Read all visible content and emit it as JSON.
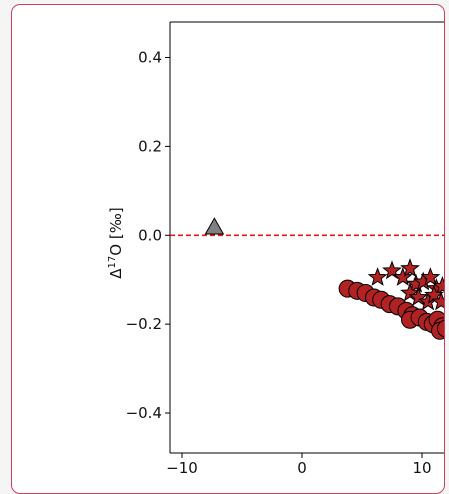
{
  "chart_data": {
    "type": "scatter",
    "title": "",
    "xlabel": "",
    "ylabel_main": "Δ",
    "ylabel_sup": "17",
    "ylabel_rest": "O [‰]",
    "xlim": [
      -11,
      12
    ],
    "ylim": [
      -0.49,
      0.48
    ],
    "xticks": [
      -10,
      0,
      10
    ],
    "xtick_labels": [
      "−10",
      "0",
      "10"
    ],
    "yticks": [
      0.4,
      0.2,
      0.0,
      -0.2,
      -0.4
    ],
    "ytick_labels": [
      "0.4",
      "0.2",
      "0.0",
      "−0.2",
      "−0.4"
    ],
    "grid": false,
    "reference_line": {
      "y": 0.0,
      "color": "#e8161b",
      "style": "dashed"
    },
    "series": [
      {
        "marker": "triangle",
        "color": "#808080",
        "points": [
          [
            -7.3,
            0.018
          ]
        ]
      },
      {
        "marker": "circle",
        "color": "#b22222",
        "points": [
          [
            3.8,
            -0.12
          ],
          [
            4.6,
            -0.125
          ],
          [
            5.3,
            -0.13
          ],
          [
            6.0,
            -0.14
          ],
          [
            6.6,
            -0.145
          ],
          [
            7.3,
            -0.155
          ],
          [
            8.0,
            -0.16
          ],
          [
            8.7,
            -0.17
          ],
          [
            9.2,
            -0.18
          ],
          [
            9.0,
            -0.19
          ],
          [
            9.8,
            -0.185
          ],
          [
            10.4,
            -0.195
          ],
          [
            10.9,
            -0.2
          ],
          [
            11.3,
            -0.19
          ],
          [
            11.7,
            -0.205
          ],
          [
            11.5,
            -0.215
          ],
          [
            12.0,
            -0.21
          ]
        ]
      },
      {
        "marker": "star",
        "color": "#b22222",
        "points": [
          [
            6.3,
            -0.095
          ],
          [
            7.5,
            -0.08
          ],
          [
            8.4,
            -0.095
          ],
          [
            9.0,
            -0.075
          ],
          [
            9.5,
            -0.11
          ],
          [
            10.1,
            -0.105
          ],
          [
            10.7,
            -0.095
          ],
          [
            11.2,
            -0.12
          ],
          [
            11.7,
            -0.115
          ],
          [
            9.0,
            -0.13
          ],
          [
            9.7,
            -0.14
          ],
          [
            10.5,
            -0.15
          ],
          [
            11.0,
            -0.135
          ],
          [
            11.6,
            -0.15
          ]
        ]
      }
    ]
  }
}
